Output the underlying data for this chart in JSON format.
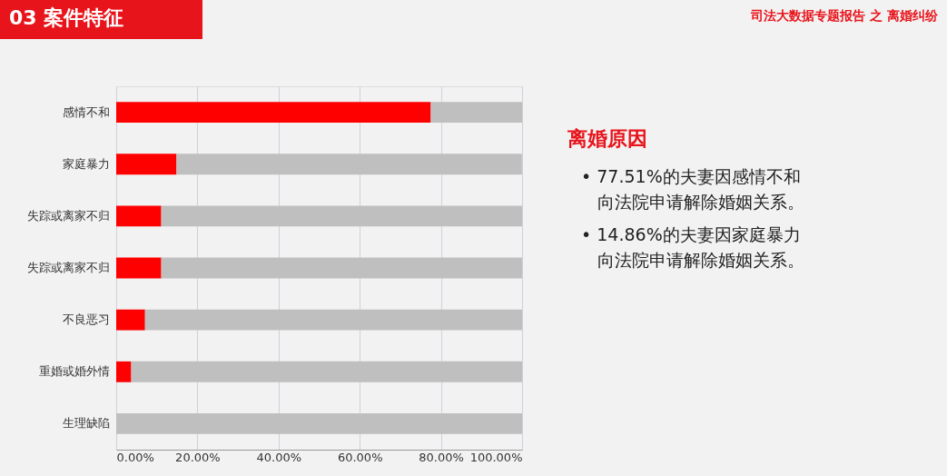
{
  "chart_data": {
    "type": "bar",
    "orientation": "horizontal",
    "stacked": true,
    "title": "03 案件特征",
    "subtitle": "司法大数据专题报告 之 离婚纠纷",
    "categories": [
      "感情不和",
      "家庭暴力",
      "失踪或离家不归",
      "失踪或离家不归",
      "不良恶习",
      "重婚或婚外情",
      "生理缺陷"
    ],
    "series": [
      {
        "color": "#ff0000",
        "values": [
          77.51,
          14.86,
          11.1,
          11.1,
          7.1,
          3.7,
          0
        ]
      },
      {
        "color": "#bfbfbf",
        "values": [
          22.5,
          85.1,
          88.9,
          88.9,
          92.9,
          96.3,
          100
        ]
      }
    ],
    "xlim": [
      0,
      100
    ],
    "xticks": [
      {
        "value": 0,
        "label": "0.00%"
      },
      {
        "value": 20,
        "label": "20.00%"
      },
      {
        "value": 40,
        "label": "40.00%"
      },
      {
        "value": 60,
        "label": "60.00%"
      },
      {
        "value": 80,
        "label": "80.00%"
      },
      {
        "value": 100,
        "label": "100.00%"
      }
    ],
    "grid": "x",
    "annotations": [
      "离婚原因",
      "• 77.51%的夫妻因感情不和",
      "向法院申请解除婚姻关系。",
      "• 14.86%的夫妻因家庭暴力",
      "向法院申请解除婚姻关系。"
    ]
  }
}
